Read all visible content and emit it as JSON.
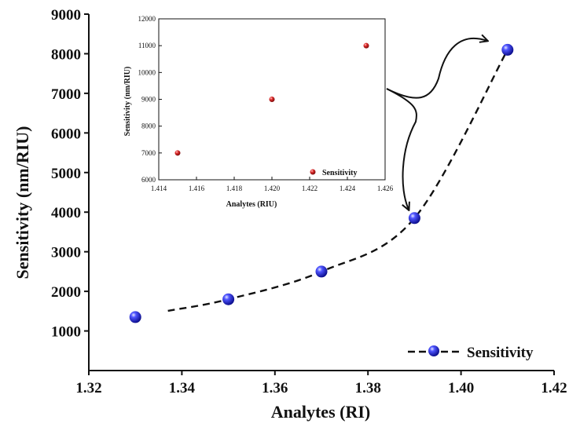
{
  "chart_data": [
    {
      "type": "line",
      "title": "",
      "xlabel": "Analytes (RI)",
      "ylabel": "Sensitivity (nm/RIU)",
      "xlim": [
        1.32,
        1.42
      ],
      "ylim": [
        0,
        9000
      ],
      "xticks": [
        "1.32",
        "1.34",
        "1.36",
        "1.38",
        "1.40",
        "1.42"
      ],
      "yticks": [
        "1000",
        "2000",
        "3000",
        "4000",
        "5000",
        "6000",
        "7000",
        "8000",
        "9000"
      ],
      "series": [
        {
          "name": "Sensitivity",
          "x": [
            1.33,
            1.35,
            1.37,
            1.39,
            1.41
          ],
          "values": [
            1350,
            1800,
            2500,
            3850,
            8100
          ],
          "marker_color": "#1d22e6",
          "line_color": "#111111",
          "line_style": "dashed"
        }
      ],
      "legend_position": "bottom-right",
      "grid": false
    },
    {
      "type": "scatter",
      "title": "",
      "xlabel": "Analytes (RIU)",
      "ylabel": "Sensitivity (nm/RIU)",
      "xlim": [
        1.414,
        1.426
      ],
      "ylim": [
        6000,
        12000
      ],
      "xticks": [
        "1.414",
        "1.416",
        "1.418",
        "1.420",
        "1.422",
        "1.424",
        "1.426"
      ],
      "yticks": [
        "6000",
        "7000",
        "8000",
        "9000",
        "10000",
        "11000",
        "12000"
      ],
      "series": [
        {
          "name": "Sensitivity",
          "x": [
            1.415,
            1.42,
            1.425
          ],
          "values": [
            7000,
            9000,
            11000
          ],
          "marker_color": "#d42020"
        }
      ],
      "legend_position": "bottom-right",
      "grid": false
    }
  ]
}
